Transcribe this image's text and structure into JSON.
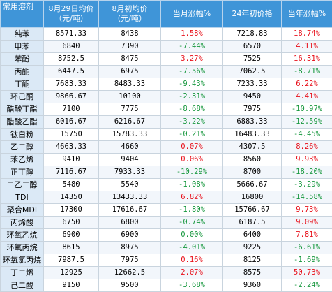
{
  "headers": [
    "常用溶剂",
    "8月29日均价\n（元/吨）",
    "8月初均价\n（元/吨）",
    "当月涨幅%",
    "24年初价格",
    "当年涨幅%"
  ],
  "rows": [
    {
      "name": "纯苯",
      "avg_aug29": "8571.33",
      "avg_aug_start": "8438",
      "month_chg": "1.58%",
      "price_24start": "7218.83",
      "year_chg": "18.74%"
    },
    {
      "name": "甲苯",
      "avg_aug29": "6840",
      "avg_aug_start": "7390",
      "month_chg": "-7.44%",
      "price_24start": "6570",
      "year_chg": "4.11%"
    },
    {
      "name": "苯酚",
      "avg_aug29": "8752.5",
      "avg_aug_start": "8475",
      "month_chg": "3.27%",
      "price_24start": "7525",
      "year_chg": "16.31%"
    },
    {
      "name": "丙酮",
      "avg_aug29": "6447.5",
      "avg_aug_start": "6975",
      "month_chg": "-7.56%",
      "price_24start": "7062.5",
      "year_chg": "-8.71%"
    },
    {
      "name": "丁酮",
      "avg_aug29": "7683.33",
      "avg_aug_start": "8483.33",
      "month_chg": "-9.43%",
      "price_24start": "7233.33",
      "year_chg": "6.22%"
    },
    {
      "name": "环己酮",
      "avg_aug29": "9866.67",
      "avg_aug_start": "10100",
      "month_chg": "-2.31%",
      "price_24start": "9450",
      "year_chg": "4.41%"
    },
    {
      "name": "醋酸丁酯",
      "avg_aug29": "7100",
      "avg_aug_start": "7775",
      "month_chg": "-8.68%",
      "price_24start": "7975",
      "year_chg": "-10.97%"
    },
    {
      "name": "醋酸乙酯",
      "avg_aug29": "6016.67",
      "avg_aug_start": "6216.67",
      "month_chg": "-3.22%",
      "price_24start": "6883.33",
      "year_chg": "-12.59%"
    },
    {
      "name": "钛白粉",
      "avg_aug29": "15750",
      "avg_aug_start": "15783.33",
      "month_chg": "-0.21%",
      "price_24start": "16483.33",
      "year_chg": "-4.45%"
    },
    {
      "name": "乙二醇",
      "avg_aug29": "4663.33",
      "avg_aug_start": "4660",
      "month_chg": "0.07%",
      "price_24start": "4307.5",
      "year_chg": "8.26%"
    },
    {
      "name": "苯乙烯",
      "avg_aug29": "9410",
      "avg_aug_start": "9404",
      "month_chg": "0.06%",
      "price_24start": "8560",
      "year_chg": "9.93%"
    },
    {
      "name": "正丁醇",
      "avg_aug29": "7116.67",
      "avg_aug_start": "7933.33",
      "month_chg": "-10.29%",
      "price_24start": "8700",
      "year_chg": "-18.20%"
    },
    {
      "name": "二乙二醇",
      "avg_aug29": "5480",
      "avg_aug_start": "5540",
      "month_chg": "-1.08%",
      "price_24start": "5666.67",
      "year_chg": "-3.29%"
    },
    {
      "name": "TDI",
      "avg_aug29": "14350",
      "avg_aug_start": "13433.33",
      "month_chg": "6.82%",
      "price_24start": "16800",
      "year_chg": "-14.58%"
    },
    {
      "name": "聚合MDI",
      "avg_aug29": "17300",
      "avg_aug_start": "17616.67",
      "month_chg": "-1.80%",
      "price_24start": "15766.67",
      "year_chg": "9.73%"
    },
    {
      "name": "丙烯酸",
      "avg_aug29": "6750",
      "avg_aug_start": "6800",
      "month_chg": "-0.74%",
      "price_24start": "6187.5",
      "year_chg": "9.09%"
    },
    {
      "name": "环氧乙烷",
      "avg_aug29": "6900",
      "avg_aug_start": "6900",
      "month_chg": "0.00%",
      "price_24start": "6400",
      "year_chg": "7.81%"
    },
    {
      "name": "环氧丙烷",
      "avg_aug29": "8615",
      "avg_aug_start": "8975",
      "month_chg": "-4.01%",
      "price_24start": "9225",
      "year_chg": "-6.61%"
    },
    {
      "name": "环氧氯丙烷",
      "avg_aug29": "7987.5",
      "avg_aug_start": "7975",
      "month_chg": "0.16%",
      "price_24start": "8125",
      "year_chg": "-1.69%"
    },
    {
      "name": "丁二烯",
      "avg_aug29": "12925",
      "avg_aug_start": "12662.5",
      "month_chg": "2.07%",
      "price_24start": "8575",
      "year_chg": "50.73%"
    },
    {
      "name": "己二酸",
      "avg_aug29": "9150",
      "avg_aug_start": "9500",
      "month_chg": "-3.68%",
      "price_24start": "9360",
      "year_chg": "-2.24%"
    }
  ],
  "colors": {
    "header_bg": "#3f95d8",
    "name_bg": "#dbe9f6",
    "positive": "#e8101a",
    "negative": "#16973d"
  }
}
